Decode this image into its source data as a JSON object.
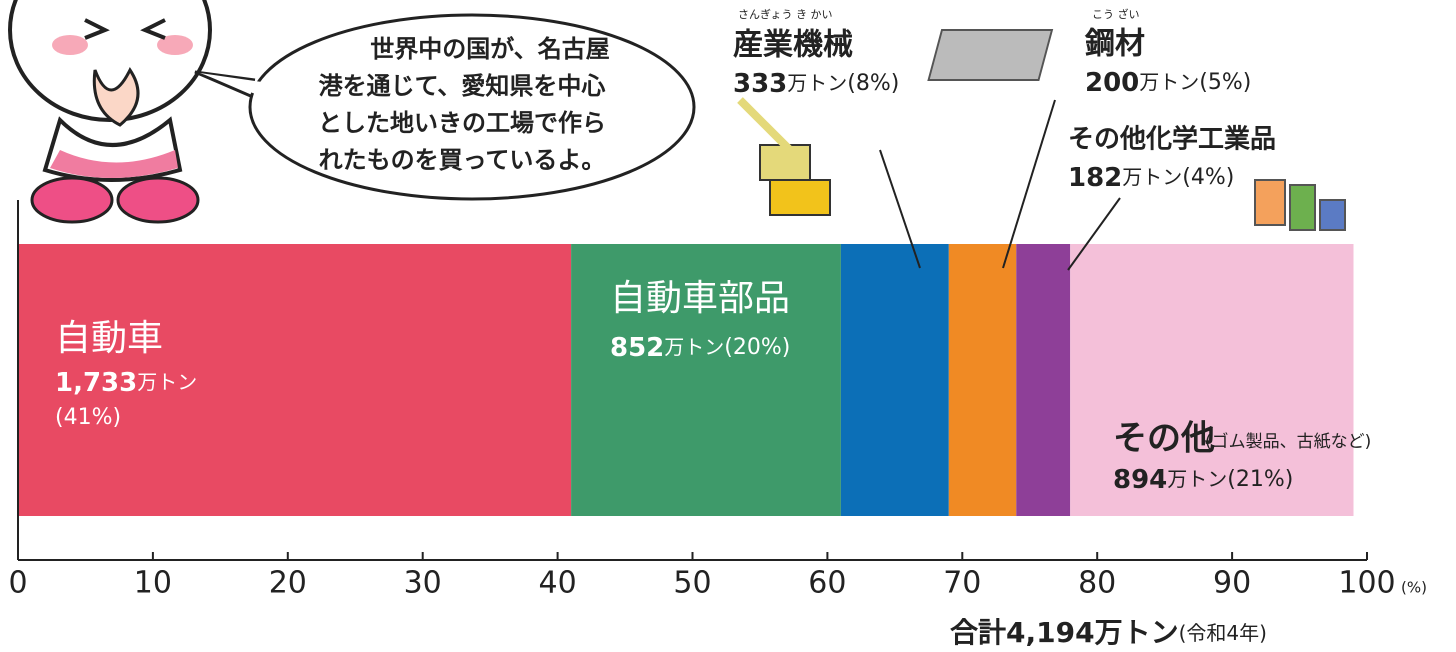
{
  "chart_data": {
    "type": "stacked-bar-100",
    "speech_bubble": [
      "世界中の国が、名古屋",
      "港を通じて、愛知県を中心",
      "とした地いきの工場で作ら",
      "れたものを買っているよ。"
    ],
    "categories": [
      null
    ],
    "series": [
      {
        "name": "自動車",
        "color": "#e84a63",
        "values": [
          41
        ],
        "value_labels": [
          "(41%)"
        ],
        "amount_label": "1,733",
        "unit_label": "万トン"
      },
      {
        "name": "自動車部品",
        "color": "#3e9a6a",
        "values": [
          20
        ],
        "value_labels": [
          "(20%)"
        ],
        "amount_label": "852",
        "unit_label": "万トン"
      },
      {
        "name": "産業機械",
        "ruby": "さんぎょう き かい",
        "color": "#0c6fb7",
        "values": [
          8
        ],
        "value_labels": [
          "(8%)"
        ],
        "amount_label": "333",
        "unit_label": "万トン"
      },
      {
        "name": "鋼材",
        "ruby": "こう ざい",
        "color": "#f08a24",
        "values": [
          5
        ],
        "value_labels": [
          "(5%)"
        ],
        "amount_label": "200",
        "unit_label": "万トン"
      },
      {
        "name": "その他化学工業品",
        "color": "#8e3f98",
        "values": [
          4
        ],
        "value_labels": [
          "(4%)"
        ],
        "amount_label": "182",
        "unit_label": "万トン"
      },
      {
        "name": "その他",
        "note": "(ゴム製品、古紙など)",
        "color": "#f4c0d9",
        "values": [
          21
        ],
        "value_labels": [
          "(21%)"
        ],
        "amount_label": "894",
        "unit_label": "万トン"
      }
    ],
    "xlim": [
      0,
      100
    ],
    "xticks": [
      0,
      10,
      20,
      30,
      40,
      50,
      60,
      70,
      80,
      90,
      100
    ],
    "x_unit": "(%)",
    "total_label": "合計4,194万トン",
    "total_note": "(令和4年)"
  }
}
